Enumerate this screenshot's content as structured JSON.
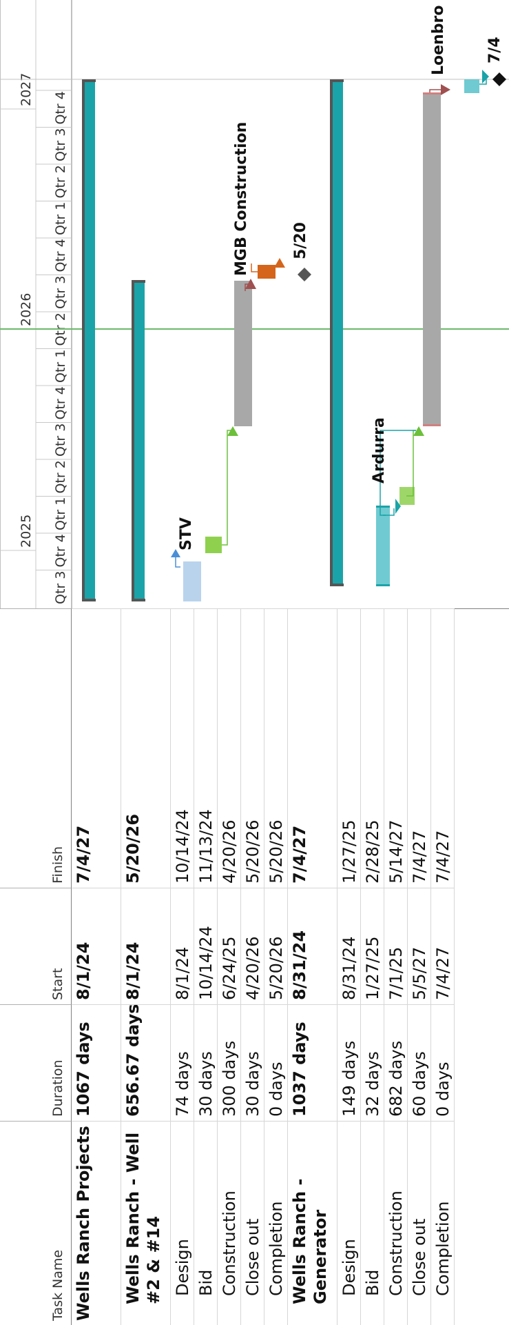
{
  "columns": {
    "task_name": "Task Name",
    "duration": "Duration",
    "start": "Start",
    "finish": "Finish"
  },
  "rows": [
    {
      "name": "Wells Ranch Projects",
      "duration": "1067 days",
      "start": "8/1/24",
      "finish": "7/4/27",
      "level": 0,
      "bold": true
    },
    {
      "name": "Wells Ranch - Well #2 & #14",
      "duration": "656.67 days",
      "start": "8/1/24",
      "finish": "5/20/26",
      "level": 1,
      "bold": true
    },
    {
      "name": "Design",
      "duration": "74 days",
      "start": "8/1/24",
      "finish": "10/14/24",
      "level": 2,
      "bold": false
    },
    {
      "name": "Bid",
      "duration": "30 days",
      "start": "10/14/24",
      "finish": "11/13/24",
      "level": 2,
      "bold": false
    },
    {
      "name": "Construction",
      "duration": "300 days",
      "start": "6/24/25",
      "finish": "4/20/26",
      "level": 2,
      "bold": false
    },
    {
      "name": "Close out",
      "duration": "30 days",
      "start": "4/20/26",
      "finish": "5/20/26",
      "level": 2,
      "bold": false
    },
    {
      "name": "Completion",
      "duration": "0 days",
      "start": "5/20/26",
      "finish": "5/20/26",
      "level": 2,
      "bold": false
    },
    {
      "name": "Wells Ranch - Generator",
      "duration": "1037 days",
      "start": "8/31/24",
      "finish": "7/4/27",
      "level": 1,
      "bold": true
    },
    {
      "name": "Design",
      "duration": "149 days",
      "start": "8/31/24",
      "finish": "1/27/25",
      "level": 2,
      "bold": false
    },
    {
      "name": "Bid",
      "duration": "32 days",
      "start": "1/27/25",
      "finish": "2/28/25",
      "level": 2,
      "bold": false
    },
    {
      "name": "Construction",
      "duration": "682 days",
      "start": "7/1/25",
      "finish": "5/14/27",
      "level": 2,
      "bold": false
    },
    {
      "name": "Close out",
      "duration": "60 days",
      "start": "5/5/27",
      "finish": "7/4/27",
      "level": 2,
      "bold": false
    },
    {
      "name": "Completion",
      "duration": "0 days",
      "start": "7/4/27",
      "finish": "7/4/27",
      "level": 2,
      "bold": false
    }
  ],
  "timescale": {
    "years": [
      {
        "label": "2025"
      },
      {
        "label": "2026"
      },
      {
        "label": "2027"
      }
    ],
    "quarters": [
      "Qtr 3",
      "Qtr 4",
      "Qtr 1",
      "Qtr 2",
      "Qtr 3",
      "Qtr 4",
      "Qtr 1",
      "Qtr 2",
      "Qtr 3",
      "Qtr 4",
      "Qtr 1",
      "Qtr 2",
      "Qtr 3",
      "Qtr 4"
    ]
  },
  "bar_labels": {
    "stv": "STV",
    "mgb": "MGB Construction",
    "milestone1": "5/20",
    "ardurra": "Ardurra",
    "loenbro": "Loenbro",
    "milestone2": "7/4"
  },
  "colors": {
    "summary": "#1aa3a8",
    "summary_edge": "#555555",
    "design1": "#b9d3ec",
    "bid1": "#8fd14f",
    "construction": "#a8a8a8",
    "closeout1": "#d4651b",
    "design2": "#6fcbd1",
    "bid2": "#9fd66a",
    "closeout2": "#6fcbd1",
    "milestone": "#555555",
    "today_line": "#6bb86b"
  }
}
